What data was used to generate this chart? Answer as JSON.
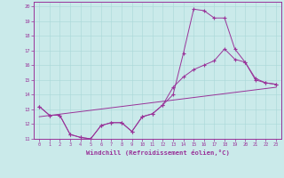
{
  "xlabel": "Windchill (Refroidissement éolien,°C)",
  "background_color": "#caeaea",
  "line_color": "#993399",
  "xlim": [
    -0.5,
    23.5
  ],
  "ylim": [
    11,
    20.3
  ],
  "yticks": [
    11,
    12,
    13,
    14,
    15,
    16,
    17,
    18,
    19,
    20
  ],
  "xticks": [
    0,
    1,
    2,
    3,
    4,
    5,
    6,
    7,
    8,
    9,
    10,
    11,
    12,
    13,
    14,
    15,
    16,
    17,
    18,
    19,
    20,
    21,
    22,
    23
  ],
  "series1_x": [
    0,
    1,
    2,
    3,
    4,
    5,
    6,
    7,
    8,
    9,
    10,
    11,
    12,
    13,
    14,
    15,
    16,
    17,
    18,
    19,
    20,
    21,
    22,
    23
  ],
  "series1_y": [
    13.2,
    12.6,
    12.6,
    11.3,
    11.1,
    11.0,
    11.9,
    12.1,
    12.1,
    11.5,
    12.5,
    12.7,
    13.3,
    14.0,
    16.8,
    19.8,
    19.7,
    19.2,
    19.2,
    17.1,
    16.2,
    15.0,
    14.8,
    14.7
  ],
  "series2_x": [
    0,
    1,
    2,
    3,
    4,
    5,
    6,
    7,
    8,
    9,
    10,
    11,
    12,
    13,
    14,
    15,
    16,
    17,
    18,
    19,
    20,
    21,
    22,
    23
  ],
  "series2_y": [
    13.2,
    12.6,
    12.6,
    11.3,
    11.1,
    11.0,
    11.9,
    12.1,
    12.1,
    11.5,
    12.5,
    12.7,
    13.3,
    14.5,
    15.2,
    15.7,
    16.0,
    16.3,
    17.1,
    16.4,
    16.2,
    15.1,
    14.8,
    14.7
  ],
  "series3_x": [
    0,
    23
  ],
  "series3_y": [
    12.5,
    14.5
  ]
}
